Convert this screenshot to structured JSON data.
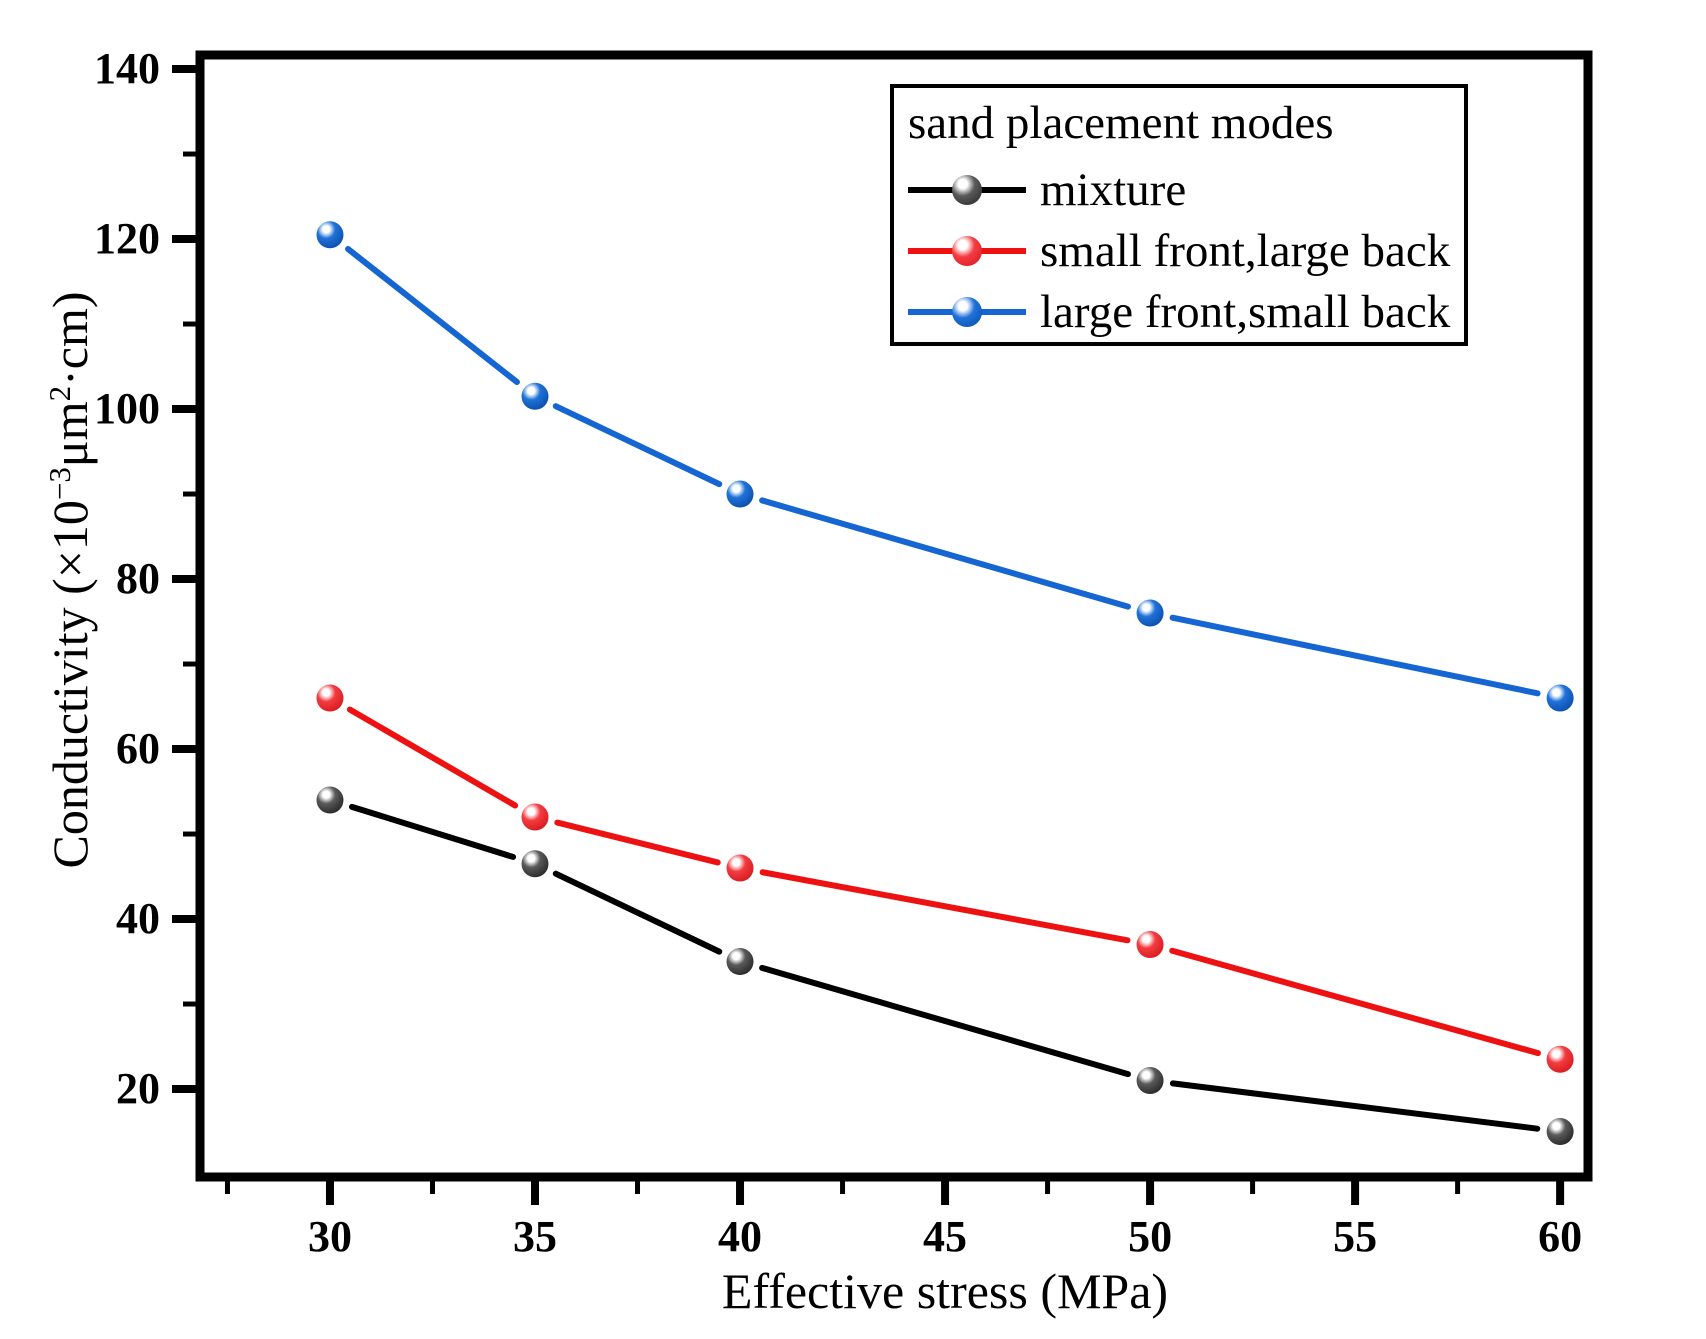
{
  "chart_data": {
    "type": "line",
    "legend_title": "sand placement modes",
    "xlabel": "Effective stress (MPa)",
    "ylabel_parts": {
      "pre": "Conductivity (×10",
      "sup1": "−3",
      "mid": "μm",
      "sup2": "2",
      "post": "·cm)"
    },
    "x": [
      30,
      35,
      40,
      50,
      60
    ],
    "series": [
      {
        "name": "mixture",
        "color": "#000000",
        "ball": [
          "#ffffff",
          "#5a5a5a",
          "#222222"
        ],
        "values": [
          54,
          46.5,
          35,
          21,
          15
        ]
      },
      {
        "name": "small front,large back",
        "color": "#ee1111",
        "ball": [
          "#ffffff",
          "#f23c41",
          "#d6161b"
        ],
        "values": [
          66,
          52,
          46,
          37,
          23.5
        ]
      },
      {
        "name": "large front,small back",
        "color": "#1566d2",
        "ball": [
          "#ffffff",
          "#1f72d8",
          "#0a4aa8"
        ],
        "values": [
          120.5,
          101.5,
          90,
          76,
          66
        ]
      }
    ],
    "x_ticks": [
      30,
      35,
      40,
      45,
      50,
      55,
      60
    ],
    "x_minor_ticks": [
      27.5,
      32.5,
      37.5,
      42.5,
      47.5,
      52.5,
      57.5
    ],
    "y_ticks": [
      20,
      40,
      60,
      80,
      100,
      120,
      140
    ],
    "y_minor_ticks": [
      30,
      50,
      70,
      90,
      110,
      130
    ],
    "xlim": [
      26.83,
      60.68
    ],
    "ylim": [
      9.65,
      141.65
    ],
    "grid": false,
    "legend_position": "top-right"
  }
}
